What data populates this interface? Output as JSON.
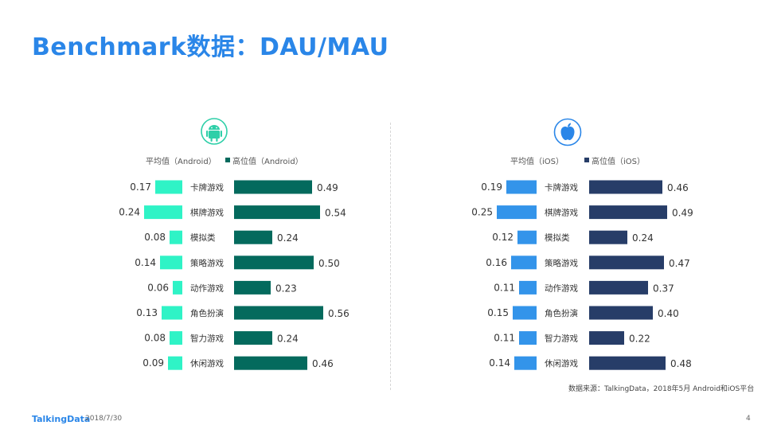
{
  "title": "Benchmark数据：DAU/MAU",
  "source": "数据来源：TalkingData，2018年5月 Android和iOS平台",
  "footer": {
    "logo": "TalkingData",
    "date": "2018/7/30",
    "page": "4"
  },
  "colors": {
    "android_avg": "#2ff3c6",
    "android_top": "#046a5d",
    "ios_avg": "#3394ea",
    "ios_top": "#273d68",
    "android_icon": "#2ecfa8",
    "ios_icon": "#2a86e8"
  },
  "chart_data": [
    {
      "type": "bar",
      "platform_icon": "android-icon",
      "categories": [
        "卡牌游戏",
        "棋牌游戏",
        "模拟类",
        "策略游戏",
        "动作游戏",
        "角色扮演",
        "智力游戏",
        "休闲游戏"
      ],
      "series": [
        {
          "name": "平均值（Android）",
          "values": [
            0.17,
            0.24,
            0.08,
            0.14,
            0.06,
            0.13,
            0.08,
            0.09
          ]
        },
        {
          "name": "高位值（Android）",
          "values": [
            0.49,
            0.54,
            0.24,
            0.5,
            0.23,
            0.56,
            0.24,
            0.46
          ]
        }
      ],
      "labels": {
        "avg": [
          "0.17",
          "0.24",
          "0.08",
          "0.14",
          "0.06",
          "0.13",
          "0.08",
          "0.09"
        ],
        "top": [
          "0.49",
          "0.54",
          "0.24",
          "0.50",
          "0.23",
          "0.56",
          "0.24",
          "0.46"
        ]
      }
    },
    {
      "type": "bar",
      "platform_icon": "apple-icon",
      "categories": [
        "卡牌游戏",
        "棋牌游戏",
        "模拟类",
        "策略游戏",
        "动作游戏",
        "角色扮演",
        "智力游戏",
        "休闲游戏"
      ],
      "series": [
        {
          "name": "平均值（iOS）",
          "values": [
            0.19,
            0.25,
            0.12,
            0.16,
            0.11,
            0.15,
            0.11,
            0.14
          ]
        },
        {
          "name": "高位值（iOS）",
          "values": [
            0.46,
            0.49,
            0.24,
            0.47,
            0.37,
            0.4,
            0.22,
            0.48
          ]
        }
      ],
      "labels": {
        "avg": [
          "0.19",
          "0.25",
          "0.12",
          "0.16",
          "0.11",
          "0.15",
          "0.11",
          "0.14"
        ],
        "top": [
          "0.46",
          "0.49",
          "0.24",
          "0.47",
          "0.37",
          "0.40",
          "0.22",
          "0.48"
        ]
      }
    }
  ]
}
